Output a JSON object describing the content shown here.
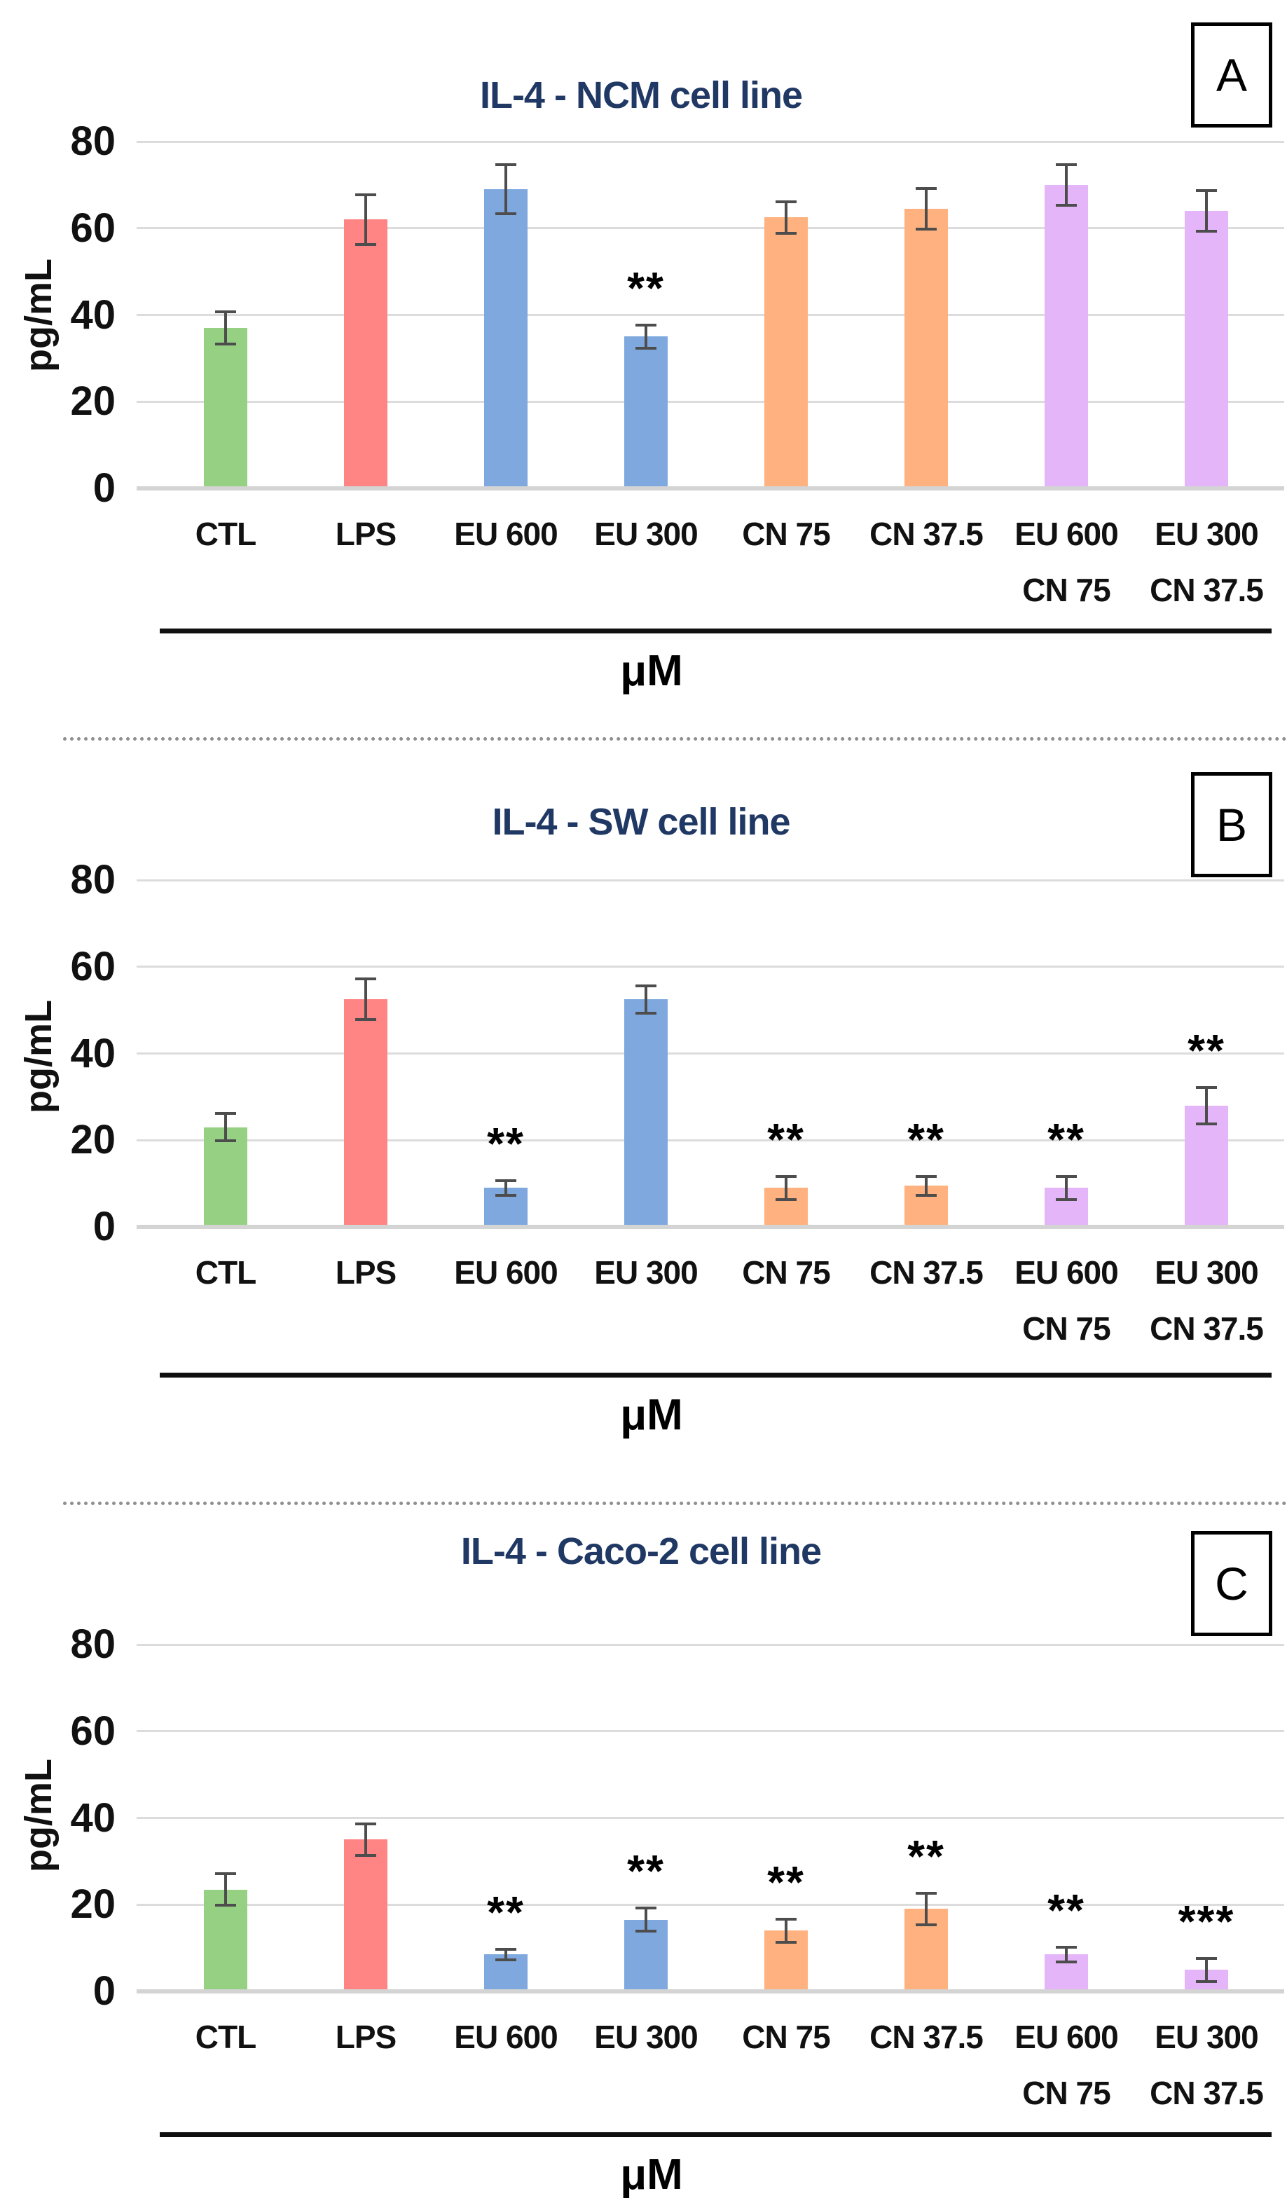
{
  "figure": {
    "background": "#ffffff",
    "title_color": "#203864",
    "grid_color": "#DCDCDC",
    "error_bar_color": "#4D4D4D",
    "separator_color": "#8F8F8F",
    "panels": [
      {
        "letter": "A",
        "title": "IL-4 - NCM cell line",
        "chart_data": {
          "type": "bar",
          "title": "IL-4 - NCM cell line",
          "xlabel": "μM",
          "ylabel": "pg/mL",
          "ylim": [
            0,
            80
          ],
          "yticks": [
            0,
            20,
            40,
            60,
            80
          ],
          "grid": true,
          "legend": false,
          "categories": [
            [
              "CTL"
            ],
            [
              "LPS"
            ],
            [
              "EU 600"
            ],
            [
              "EU 300"
            ],
            [
              "CN 75"
            ],
            [
              "CN 37.5"
            ],
            [
              "EU 600",
              "CN 75"
            ],
            [
              "EU 300",
              "CN 37.5"
            ]
          ],
          "values": [
            37,
            62,
            69,
            35,
            62.5,
            64.5,
            70,
            64
          ],
          "errors": [
            4,
            6,
            6,
            3,
            4,
            5,
            5,
            5
          ],
          "significance": [
            "",
            "",
            "",
            "**",
            "",
            "",
            "",
            ""
          ],
          "bar_colors": [
            "#96D183",
            "#FF8585",
            "#7FA9DE",
            "#7FA9DE",
            "#FFB27F",
            "#FFB27F",
            "#E4B5F8",
            "#E4B5F8"
          ]
        }
      },
      {
        "letter": "B",
        "title": "IL-4 - SW cell line",
        "chart_data": {
          "type": "bar",
          "title": "IL-4 - SW cell line",
          "xlabel": "μM",
          "ylabel": "pg/mL",
          "ylim": [
            0,
            80
          ],
          "yticks": [
            0,
            20,
            40,
            60,
            80
          ],
          "grid": true,
          "legend": false,
          "categories": [
            [
              "CTL"
            ],
            [
              "LPS"
            ],
            [
              "EU 600"
            ],
            [
              "EU 300"
            ],
            [
              "CN 75"
            ],
            [
              "CN 37.5"
            ],
            [
              "EU 600",
              "CN 75"
            ],
            [
              "EU 300",
              "CN 37.5"
            ]
          ],
          "values": [
            23,
            52.5,
            9,
            52.5,
            9,
            9.5,
            9,
            28
          ],
          "errors": [
            3.5,
            5,
            2,
            3.5,
            3,
            2.5,
            3,
            4.5
          ],
          "significance": [
            "",
            "",
            "**",
            "",
            "**",
            "**",
            "**",
            "**"
          ],
          "bar_colors": [
            "#96D183",
            "#FF8585",
            "#7FA9DE",
            "#7FA9DE",
            "#FFB27F",
            "#FFB27F",
            "#E4B5F8",
            "#E4B5F8"
          ]
        }
      },
      {
        "letter": "C",
        "title": "IL-4 - Caco-2 cell line",
        "chart_data": {
          "type": "bar",
          "title": "IL-4 - Caco-2 cell line",
          "xlabel": "μM",
          "ylabel": "pg/mL",
          "ylim": [
            0,
            80
          ],
          "yticks": [
            0,
            20,
            40,
            60,
            80
          ],
          "grid": true,
          "legend": false,
          "categories": [
            [
              "CTL"
            ],
            [
              "LPS"
            ],
            [
              "EU 600"
            ],
            [
              "EU 300"
            ],
            [
              "CN 75"
            ],
            [
              "CN 37.5"
            ],
            [
              "EU 600",
              "CN 75"
            ],
            [
              "EU 300",
              "CN 37.5"
            ]
          ],
          "values": [
            23.5,
            35,
            8.5,
            16.5,
            14,
            19,
            8.5,
            5
          ],
          "errors": [
            4,
            4,
            1.5,
            3,
            3,
            4,
            2,
            3
          ],
          "significance": [
            "",
            "",
            "**",
            "**",
            "**",
            "**",
            "**",
            "***"
          ],
          "bar_colors": [
            "#96D183",
            "#FF8585",
            "#7FA9DE",
            "#7FA9DE",
            "#FFB27F",
            "#FFB27F",
            "#E4B5F8",
            "#E4B5F8"
          ]
        }
      }
    ]
  }
}
